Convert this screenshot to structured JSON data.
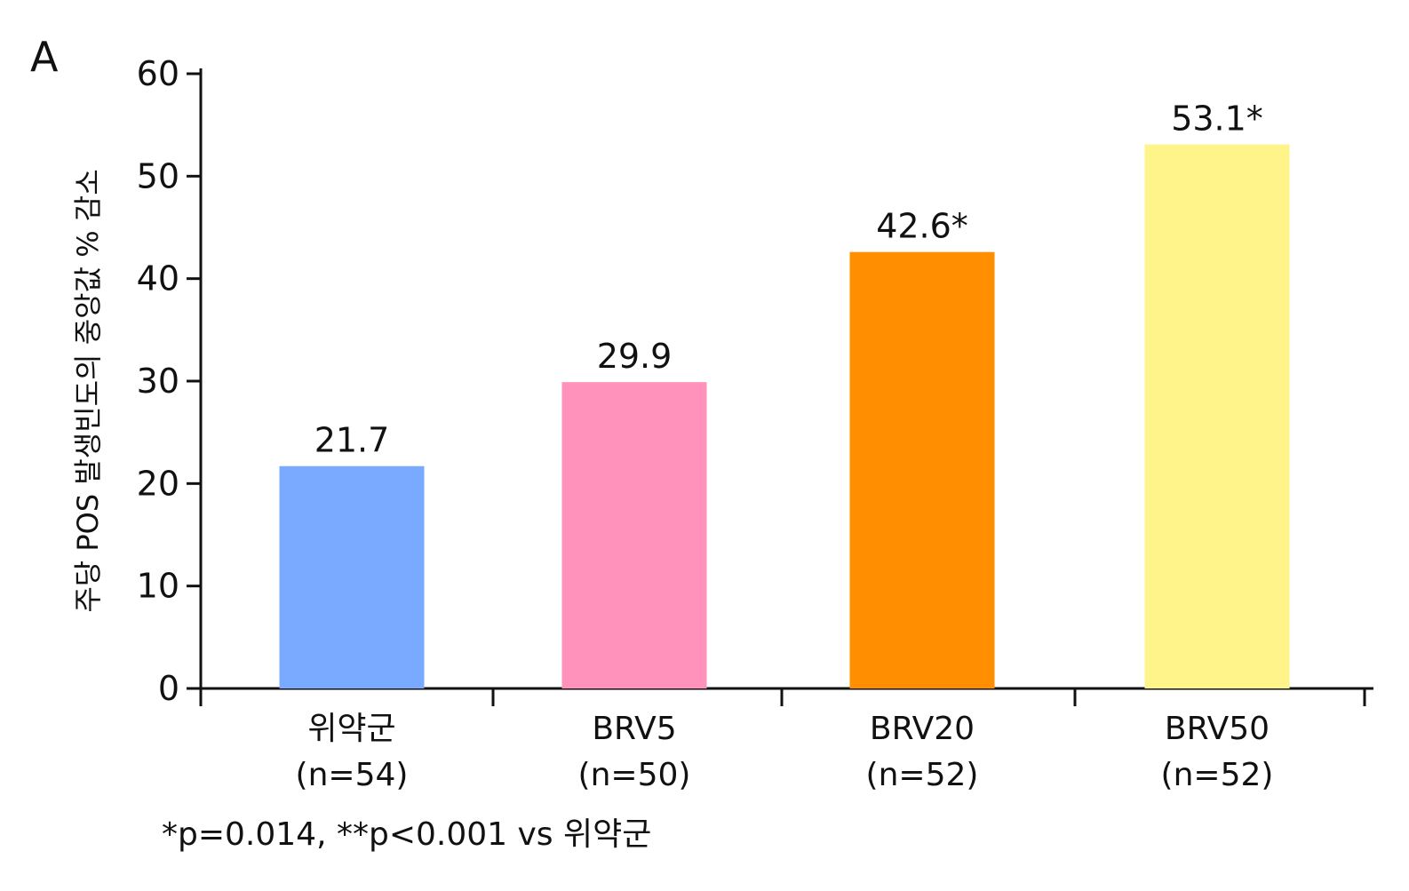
{
  "panel_label": "A",
  "footnote": "*p=0.014, **p<0.001 vs 위약군",
  "chart_data": {
    "type": "bar",
    "title": "",
    "xlabel": "",
    "ylabel": "주당 POS 발생빈도의 중앙값 % 감소",
    "ylim": [
      0,
      60
    ],
    "yticks": [
      0,
      10,
      20,
      30,
      40,
      50,
      60
    ],
    "grid": false,
    "categories": [
      {
        "name": "위약군",
        "n": "(n=54)"
      },
      {
        "name": "BRV5",
        "n": "(n=50)"
      },
      {
        "name": "BRV20",
        "n": "(n=52)"
      },
      {
        "name": "BRV50",
        "n": "(n=52)"
      }
    ],
    "values": [
      21.7,
      29.9,
      42.6,
      53.1
    ],
    "value_labels": [
      "21.7",
      "29.9",
      "42.6*",
      "53.1*"
    ],
    "colors": [
      "#7aaaff",
      "#ff92bb",
      "#ff8f00",
      "#fff48a"
    ]
  }
}
